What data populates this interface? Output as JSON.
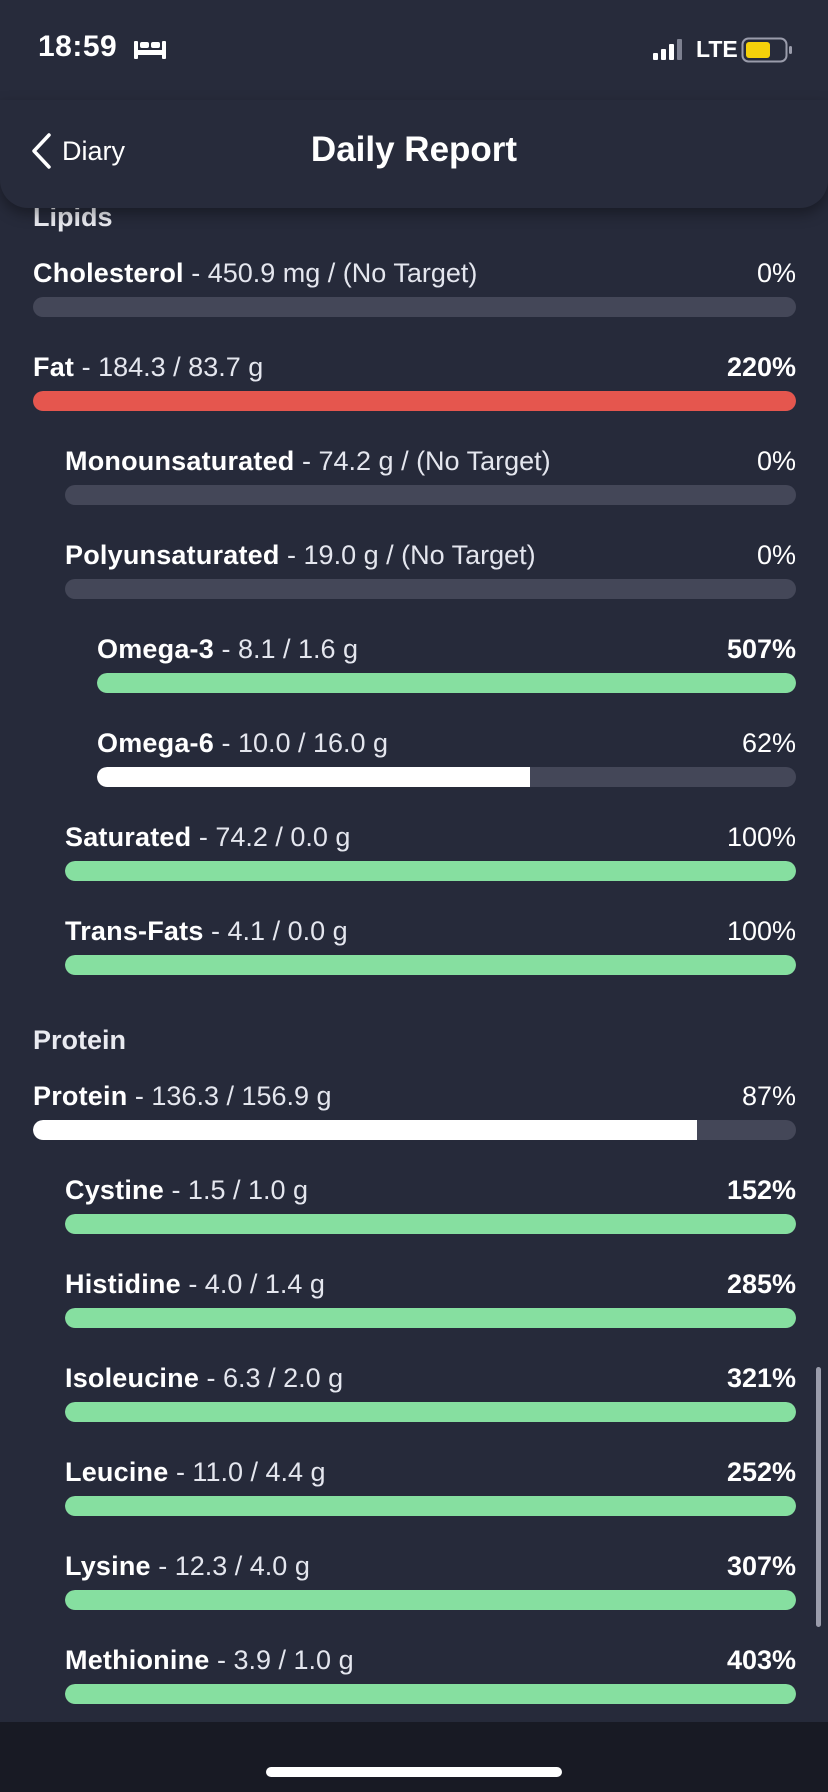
{
  "status_bar": {
    "time": "18:59",
    "network": "LTE",
    "sleep_icon": "bed-icon",
    "signal_icon": "signal-icon",
    "battery_icon": "battery-icon",
    "battery_color": "#f5d10a"
  },
  "nav": {
    "back_label": "Diary",
    "back_icon": "chevron-left-icon",
    "title": "Daily Report"
  },
  "colors": {
    "background": "#262a3a",
    "track": "#444758",
    "over": "#e5564e",
    "ok": "#86dfa0",
    "partial": "#ffffff"
  },
  "sections": [
    {
      "title": "Lipids",
      "items": [
        {
          "name": "Cholesterol",
          "detail": " - 450.9 mg / (No Target)",
          "percent": "0%",
          "fill_fraction": 0,
          "color": "none",
          "bold_pct": false
        },
        {
          "name": "Fat",
          "detail": " - 184.3 / 83.7 g",
          "percent": "220%",
          "fill_fraction": 1,
          "color": "over",
          "bold_pct": true
        },
        {
          "name": "Monounsaturated",
          "detail": " - 74.2 g / (No Target)",
          "percent": "0%",
          "fill_fraction": 0,
          "color": "none",
          "bold_pct": false
        },
        {
          "name": "Polyunsaturated",
          "detail": " - 19.0 g / (No Target)",
          "percent": "0%",
          "fill_fraction": 0,
          "color": "none",
          "bold_pct": false
        },
        {
          "name": "Omega-3",
          "detail": " - 8.1 / 1.6 g",
          "percent": "507%",
          "fill_fraction": 1,
          "color": "ok",
          "bold_pct": true
        },
        {
          "name": "Omega-6",
          "detail": " - 10.0 / 16.0 g",
          "percent": "62%",
          "fill_fraction": 0.62,
          "color": "partial",
          "bold_pct": false
        },
        {
          "name": "Saturated",
          "detail": " - 74.2 / 0.0 g",
          "percent": "100%",
          "fill_fraction": 1,
          "color": "ok",
          "bold_pct": false
        },
        {
          "name": "Trans-Fats",
          "detail": " - 4.1 / 0.0 g",
          "percent": "100%",
          "fill_fraction": 1,
          "color": "ok",
          "bold_pct": false
        }
      ]
    },
    {
      "title": "Protein",
      "items": [
        {
          "name": "Protein",
          "detail": " - 136.3 / 156.9 g",
          "percent": "87%",
          "fill_fraction": 0.87,
          "color": "partial",
          "bold_pct": false
        },
        {
          "name": "Cystine",
          "detail": " - 1.5 / 1.0 g",
          "percent": "152%",
          "fill_fraction": 1,
          "color": "ok",
          "bold_pct": true
        },
        {
          "name": "Histidine",
          "detail": " - 4.0 / 1.4 g",
          "percent": "285%",
          "fill_fraction": 1,
          "color": "ok",
          "bold_pct": true
        },
        {
          "name": "Isoleucine",
          "detail": " - 6.3 / 2.0 g",
          "percent": "321%",
          "fill_fraction": 1,
          "color": "ok",
          "bold_pct": true
        },
        {
          "name": "Leucine",
          "detail": " - 11.0 / 4.4 g",
          "percent": "252%",
          "fill_fraction": 1,
          "color": "ok",
          "bold_pct": true
        },
        {
          "name": "Lysine",
          "detail": " - 12.3 / 4.0 g",
          "percent": "307%",
          "fill_fraction": 1,
          "color": "ok",
          "bold_pct": true
        },
        {
          "name": "Methionine",
          "detail": " - 3.9 / 1.0 g",
          "percent": "403%",
          "fill_fraction": 1,
          "color": "ok",
          "bold_pct": true
        }
      ]
    }
  ]
}
